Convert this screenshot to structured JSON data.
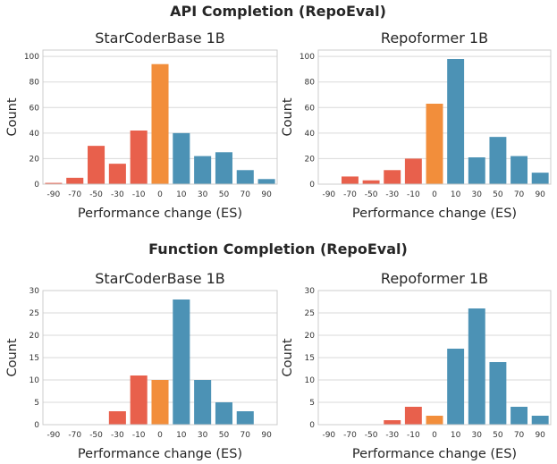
{
  "figure": {
    "rows": [
      {
        "title": "API Completion (RepoEval)"
      },
      {
        "title": "Function Completion (RepoEval)"
      }
    ]
  },
  "colors": {
    "negative": "#e8604c",
    "zero": "#f28e3b",
    "positive": "#4c92b5"
  },
  "chart_data": [
    {
      "type": "bar",
      "title": "StarCoderBase 1B",
      "xlabel": "Performance change (ES)",
      "ylabel": "Count",
      "categories": [
        "-90",
        "-70",
        "-50",
        "-30",
        "-10",
        "0",
        "10",
        "30",
        "50",
        "70",
        "90"
      ],
      "values": [
        1,
        5,
        30,
        16,
        42,
        94,
        40,
        22,
        25,
        11,
        4
      ],
      "ylim": [
        0,
        105
      ],
      "yticks": [
        0,
        20,
        40,
        60,
        80,
        100
      ],
      "grid": true
    },
    {
      "type": "bar",
      "title": "Repoformer 1B",
      "xlabel": "Performance change (ES)",
      "ylabel": "Count",
      "categories": [
        "-90",
        "-70",
        "-50",
        "-30",
        "-10",
        "0",
        "10",
        "30",
        "50",
        "70",
        "90"
      ],
      "values": [
        0,
        6,
        3,
        11,
        20,
        63,
        98,
        21,
        37,
        22,
        9
      ],
      "ylim": [
        0,
        105
      ],
      "yticks": [
        0,
        20,
        40,
        60,
        80,
        100
      ],
      "grid": true
    },
    {
      "type": "bar",
      "title": "StarCoderBase 1B",
      "xlabel": "Performance change (ES)",
      "ylabel": "Count",
      "categories": [
        "-90",
        "-70",
        "-50",
        "-30",
        "-10",
        "0",
        "10",
        "30",
        "50",
        "70",
        "90"
      ],
      "values": [
        0,
        0,
        0,
        3,
        11,
        10,
        28,
        10,
        5,
        3,
        0
      ],
      "ylim": [
        0,
        30
      ],
      "yticks": [
        0,
        5,
        10,
        15,
        20,
        25,
        30
      ],
      "grid": true
    },
    {
      "type": "bar",
      "title": "Repoformer 1B",
      "xlabel": "Performance change (ES)",
      "ylabel": "Count",
      "categories": [
        "-90",
        "-70",
        "-50",
        "-30",
        "-10",
        "0",
        "10",
        "30",
        "50",
        "70",
        "90"
      ],
      "values": [
        0,
        0,
        0,
        1,
        4,
        2,
        17,
        26,
        14,
        4,
        2
      ],
      "ylim": [
        0,
        30
      ],
      "yticks": [
        0,
        5,
        10,
        15,
        20,
        25,
        30
      ],
      "grid": true
    }
  ]
}
